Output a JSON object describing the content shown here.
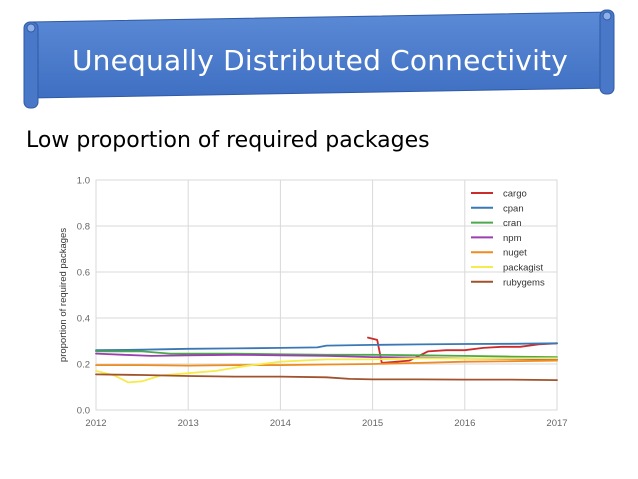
{
  "slide": {
    "title": "Unequally Distributed Connectivity",
    "subtitle": "Low proportion of required packages"
  },
  "colors": {
    "banner": "#4a78c8",
    "banner_edge": "#3a64b0",
    "grid": "#d9d9d9"
  },
  "chart_data": {
    "type": "line",
    "title": "",
    "xlabel": "",
    "ylabel": "proportion of required packages",
    "xlim": [
      2012,
      2017
    ],
    "ylim": [
      0.0,
      1.0
    ],
    "x_ticks": [
      "2012",
      "2013",
      "2014",
      "2015",
      "2016",
      "2017"
    ],
    "y_ticks": [
      "0.0",
      "0.2",
      "0.4",
      "0.6",
      "0.8",
      "1.0"
    ],
    "grid": true,
    "legend_position": "top-right",
    "series": [
      {
        "name": "cargo",
        "color": "#cc2b2b",
        "x": [
          2014.95,
          2015.05,
          2015.1,
          2015.4,
          2015.6,
          2015.8,
          2016.0,
          2016.2,
          2016.4,
          2016.6,
          2016.8,
          2017.0
        ],
        "y": [
          0.315,
          0.305,
          0.205,
          0.215,
          0.255,
          0.26,
          0.26,
          0.27,
          0.275,
          0.275,
          0.285,
          0.29
        ]
      },
      {
        "name": "cpan",
        "color": "#3a78b5",
        "x": [
          2012.0,
          2012.5,
          2013.0,
          2013.5,
          2014.0,
          2014.4,
          2014.5,
          2015.0,
          2015.5,
          2016.0,
          2016.5,
          2017.0
        ],
        "y": [
          0.26,
          0.262,
          0.266,
          0.268,
          0.27,
          0.272,
          0.28,
          0.283,
          0.285,
          0.287,
          0.288,
          0.29
        ]
      },
      {
        "name": "cran",
        "color": "#4ca84c",
        "x": [
          2012.0,
          2012.5,
          2012.8,
          2013.0,
          2013.5,
          2014.0,
          2014.5,
          2015.0,
          2015.5,
          2016.0,
          2016.5,
          2017.0
        ],
        "y": [
          0.255,
          0.255,
          0.245,
          0.245,
          0.245,
          0.242,
          0.24,
          0.24,
          0.238,
          0.235,
          0.232,
          0.23
        ]
      },
      {
        "name": "npm",
        "color": "#9b3fb0",
        "x": [
          2012.0,
          2012.3,
          2012.6,
          2013.0,
          2013.5,
          2014.0,
          2014.5,
          2015.0,
          2015.5,
          2016.0,
          2016.5,
          2017.0
        ],
        "y": [
          0.245,
          0.24,
          0.235,
          0.238,
          0.24,
          0.238,
          0.235,
          0.23,
          0.228,
          0.225,
          0.222,
          0.22
        ]
      },
      {
        "name": "nuget",
        "color": "#ee8c1f",
        "x": [
          2012.0,
          2012.5,
          2013.0,
          2013.5,
          2014.0,
          2014.5,
          2015.0,
          2015.5,
          2016.0,
          2016.5,
          2017.0
        ],
        "y": [
          0.195,
          0.195,
          0.193,
          0.195,
          0.195,
          0.198,
          0.2,
          0.205,
          0.21,
          0.212,
          0.215
        ]
      },
      {
        "name": "packagist",
        "color": "#f5ec4a",
        "x": [
          2012.0,
          2012.2,
          2012.35,
          2012.5,
          2012.7,
          2013.0,
          2013.3,
          2013.6,
          2014.0,
          2014.5,
          2015.0,
          2015.5,
          2016.0,
          2016.5,
          2017.0
        ],
        "y": [
          0.17,
          0.15,
          0.12,
          0.125,
          0.15,
          0.16,
          0.17,
          0.19,
          0.21,
          0.22,
          0.22,
          0.225,
          0.225,
          0.225,
          0.225
        ]
      },
      {
        "name": "rubygems",
        "color": "#a0522d",
        "x": [
          2012.0,
          2012.5,
          2013.0,
          2013.5,
          2014.0,
          2014.5,
          2014.75,
          2015.0,
          2015.5,
          2016.0,
          2016.5,
          2017.0
        ],
        "y": [
          0.155,
          0.152,
          0.148,
          0.145,
          0.145,
          0.142,
          0.135,
          0.133,
          0.133,
          0.132,
          0.132,
          0.13
        ]
      }
    ]
  }
}
